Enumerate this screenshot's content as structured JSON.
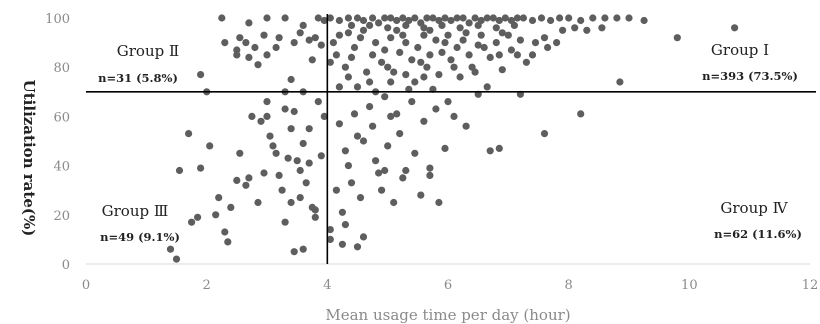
{
  "chart_data": {
    "type": "scatter",
    "xlabel": "Mean usage time per day (hour)",
    "ylabel": "Utilization rate(%)",
    "xlim": [
      0,
      12
    ],
    "ylim": [
      0,
      100
    ],
    "xticks": [
      "0",
      "2",
      "4",
      "6",
      "8",
      "10",
      "12"
    ],
    "yticks": [
      "0",
      "20",
      "40",
      "60",
      "80",
      "100"
    ],
    "grid": false,
    "reference_lines": {
      "x": 4,
      "y": 70
    },
    "colors": {
      "points": "#5e5e5e",
      "lines": "#000000",
      "axis_text": "#8a8a8a"
    },
    "quadrants": [
      {
        "name": "Group Ⅱ",
        "count": "n=31 (5.8%)",
        "position": "top-left"
      },
      {
        "name": "Group Ⅰ",
        "count": "n=393 (73.5%)",
        "position": "top-right"
      },
      {
        "name": "Group Ⅲ",
        "count": "n=49 (9.1%)",
        "position": "bottom-left"
      },
      {
        "name": "Group Ⅳ",
        "count": "n=62 (11.6%)",
        "position": "bottom-right"
      }
    ],
    "points": [
      [
        2.25,
        100
      ],
      [
        2.7,
        98
      ],
      [
        3.0,
        100
      ],
      [
        3.3,
        100
      ],
      [
        3.6,
        97
      ],
      [
        3.85,
        100
      ],
      [
        3.95,
        99
      ],
      [
        4.05,
        100
      ],
      [
        4.2,
        99
      ],
      [
        4.35,
        100
      ],
      [
        4.5,
        100
      ],
      [
        4.6,
        99
      ],
      [
        4.75,
        100
      ],
      [
        4.85,
        98
      ],
      [
        4.95,
        100
      ],
      [
        5.05,
        100
      ],
      [
        5.15,
        99
      ],
      [
        5.25,
        100
      ],
      [
        5.35,
        99
      ],
      [
        5.45,
        100
      ],
      [
        5.55,
        98
      ],
      [
        5.65,
        100
      ],
      [
        5.75,
        100
      ],
      [
        5.85,
        99
      ],
      [
        5.95,
        100
      ],
      [
        6.05,
        99
      ],
      [
        6.15,
        100
      ],
      [
        6.25,
        100
      ],
      [
        6.35,
        98
      ],
      [
        6.45,
        100
      ],
      [
        6.55,
        99
      ],
      [
        6.65,
        100
      ],
      [
        6.75,
        100
      ],
      [
        6.85,
        99
      ],
      [
        6.95,
        100
      ],
      [
        7.05,
        99
      ],
      [
        7.15,
        100
      ],
      [
        7.25,
        100
      ],
      [
        7.4,
        99
      ],
      [
        7.55,
        100
      ],
      [
        7.7,
        99
      ],
      [
        7.85,
        100
      ],
      [
        8.0,
        100
      ],
      [
        8.2,
        99
      ],
      [
        8.4,
        100
      ],
      [
        8.6,
        100
      ],
      [
        8.8,
        100
      ],
      [
        9.0,
        100
      ],
      [
        9.25,
        99
      ],
      [
        4.4,
        97
      ],
      [
        4.7,
        97
      ],
      [
        5.0,
        96
      ],
      [
        5.3,
        97
      ],
      [
        5.6,
        96
      ],
      [
        5.9,
        97
      ],
      [
        6.2,
        96
      ],
      [
        6.5,
        97
      ],
      [
        6.8,
        96
      ],
      [
        7.1,
        97
      ],
      [
        2.3,
        90
      ],
      [
        2.5,
        87
      ],
      [
        2.65,
        90
      ],
      [
        2.8,
        88
      ],
      [
        2.85,
        81
      ],
      [
        2.95,
        93
      ],
      [
        3.2,
        92
      ],
      [
        3.45,
        90
      ],
      [
        3.55,
        94
      ],
      [
        3.7,
        91
      ],
      [
        3.8,
        92
      ],
      [
        3.9,
        89
      ],
      [
        2.5,
        85
      ],
      [
        2.7,
        84
      ],
      [
        3.0,
        85
      ],
      [
        3.15,
        88
      ],
      [
        3.4,
        75
      ],
      [
        3.3,
        70
      ],
      [
        3.75,
        83
      ],
      [
        2.55,
        92
      ],
      [
        3.6,
        70
      ],
      [
        1.9,
        77
      ],
      [
        2.0,
        70
      ],
      [
        4.1,
        90
      ],
      [
        4.15,
        85
      ],
      [
        4.2,
        93
      ],
      [
        4.3,
        80
      ],
      [
        4.35,
        76
      ],
      [
        4.45,
        88
      ],
      [
        4.55,
        92
      ],
      [
        4.65,
        78
      ],
      [
        4.75,
        85
      ],
      [
        4.8,
        90
      ],
      [
        4.9,
        82
      ],
      [
        4.95,
        87
      ],
      [
        5.05,
        92
      ],
      [
        5.1,
        78
      ],
      [
        5.2,
        86
      ],
      [
        5.3,
        90
      ],
      [
        5.4,
        83
      ],
      [
        5.45,
        74
      ],
      [
        5.5,
        88
      ],
      [
        5.6,
        93
      ],
      [
        5.65,
        80
      ],
      [
        5.7,
        85
      ],
      [
        5.8,
        91
      ],
      [
        5.85,
        77
      ],
      [
        5.9,
        86
      ],
      [
        6.0,
        93
      ],
      [
        6.05,
        83
      ],
      [
        6.15,
        88
      ],
      [
        6.2,
        76
      ],
      [
        6.25,
        91
      ],
      [
        6.35,
        85
      ],
      [
        6.4,
        80
      ],
      [
        6.5,
        89
      ],
      [
        6.55,
        93
      ],
      [
        6.65,
        72
      ],
      [
        6.7,
        84
      ],
      [
        6.8,
        90
      ],
      [
        6.9,
        79
      ],
      [
        7.0,
        93
      ],
      [
        7.05,
        87
      ],
      [
        7.2,
        91
      ],
      [
        7.3,
        82
      ],
      [
        7.45,
        90
      ],
      [
        7.6,
        92
      ],
      [
        7.8,
        90
      ],
      [
        8.85,
        74
      ],
      [
        9.8,
        92
      ],
      [
        10.75,
        96
      ],
      [
        4.2,
        72
      ],
      [
        4.5,
        72
      ],
      [
        4.8,
        70
      ],
      [
        5.05,
        74
      ],
      [
        5.35,
        71
      ],
      [
        5.6,
        76
      ],
      [
        5.75,
        71
      ],
      [
        4.6,
        95
      ],
      [
        5.15,
        95
      ],
      [
        5.7,
        95
      ],
      [
        6.3,
        94
      ],
      [
        6.9,
        94
      ],
      [
        4.35,
        94
      ],
      [
        5.25,
        93
      ],
      [
        5.95,
        90
      ],
      [
        6.6,
        88
      ],
      [
        4.05,
        82
      ],
      [
        4.4,
        84
      ],
      [
        4.7,
        74
      ],
      [
        5.0,
        80
      ],
      [
        5.3,
        77
      ],
      [
        5.55,
        82
      ],
      [
        6.1,
        80
      ],
      [
        6.45,
        78
      ],
      [
        6.85,
        85
      ],
      [
        7.15,
        85
      ],
      [
        7.4,
        85
      ],
      [
        7.65,
        88
      ],
      [
        7.9,
        95
      ],
      [
        8.1,
        96
      ],
      [
        8.3,
        95
      ],
      [
        8.55,
        96
      ],
      [
        1.7,
        53
      ],
      [
        1.9,
        39
      ],
      [
        2.2,
        27
      ],
      [
        2.3,
        13
      ],
      [
        2.35,
        9
      ],
      [
        2.4,
        23
      ],
      [
        2.5,
        34
      ],
      [
        2.55,
        45
      ],
      [
        2.65,
        32
      ],
      [
        2.75,
        60
      ],
      [
        2.85,
        25
      ],
      [
        2.9,
        58
      ],
      [
        2.95,
        37
      ],
      [
        3.0,
        66
      ],
      [
        3.05,
        52
      ],
      [
        3.1,
        48
      ],
      [
        3.2,
        36
      ],
      [
        3.25,
        30
      ],
      [
        3.3,
        63
      ],
      [
        3.35,
        43
      ],
      [
        3.4,
        55
      ],
      [
        3.45,
        62
      ],
      [
        3.5,
        42
      ],
      [
        3.55,
        38
      ],
      [
        3.6,
        49
      ],
      [
        3.65,
        33
      ],
      [
        3.7,
        55
      ],
      [
        3.75,
        23
      ],
      [
        3.8,
        19
      ],
      [
        3.85,
        66
      ],
      [
        3.9,
        44
      ],
      [
        3.95,
        60
      ],
      [
        3.3,
        17
      ],
      [
        3.45,
        5
      ],
      [
        3.7,
        41
      ],
      [
        3.55,
        27
      ],
      [
        1.55,
        38
      ],
      [
        1.75,
        17
      ],
      [
        1.85,
        19
      ],
      [
        1.4,
        6
      ],
      [
        1.5,
        2
      ],
      [
        2.15,
        20
      ],
      [
        3.0,
        60
      ],
      [
        3.8,
        22
      ],
      [
        3.6,
        6
      ],
      [
        2.7,
        35
      ],
      [
        3.4,
        25
      ],
      [
        3.15,
        45
      ],
      [
        2.05,
        48
      ],
      [
        4.05,
        14
      ],
      [
        4.15,
        30
      ],
      [
        4.2,
        57
      ],
      [
        4.25,
        21
      ],
      [
        4.3,
        46
      ],
      [
        4.35,
        40
      ],
      [
        4.4,
        33
      ],
      [
        4.45,
        61
      ],
      [
        4.5,
        7
      ],
      [
        4.55,
        27
      ],
      [
        4.6,
        50
      ],
      [
        4.7,
        64
      ],
      [
        4.75,
        56
      ],
      [
        4.8,
        42
      ],
      [
        4.85,
        37
      ],
      [
        4.9,
        30
      ],
      [
        4.95,
        68
      ],
      [
        5.0,
        48
      ],
      [
        5.1,
        25
      ],
      [
        5.15,
        61
      ],
      [
        5.2,
        53
      ],
      [
        5.3,
        38
      ],
      [
        5.4,
        66
      ],
      [
        5.45,
        45
      ],
      [
        5.55,
        28
      ],
      [
        5.6,
        58
      ],
      [
        5.7,
        36
      ],
      [
        5.8,
        63
      ],
      [
        5.85,
        25
      ],
      [
        5.95,
        47
      ],
      [
        6.0,
        66
      ],
      [
        6.1,
        60
      ],
      [
        6.3,
        56
      ],
      [
        6.5,
        69
      ],
      [
        6.7,
        46
      ],
      [
        6.85,
        47
      ],
      [
        7.2,
        69
      ],
      [
        7.6,
        53
      ],
      [
        8.2,
        61
      ],
      [
        4.05,
        10
      ],
      [
        4.25,
        8
      ],
      [
        4.6,
        11
      ],
      [
        4.3,
        16
      ],
      [
        4.95,
        38
      ],
      [
        5.25,
        35
      ],
      [
        5.7,
        39
      ],
      [
        4.5,
        52
      ],
      [
        5.05,
        60
      ]
    ]
  }
}
